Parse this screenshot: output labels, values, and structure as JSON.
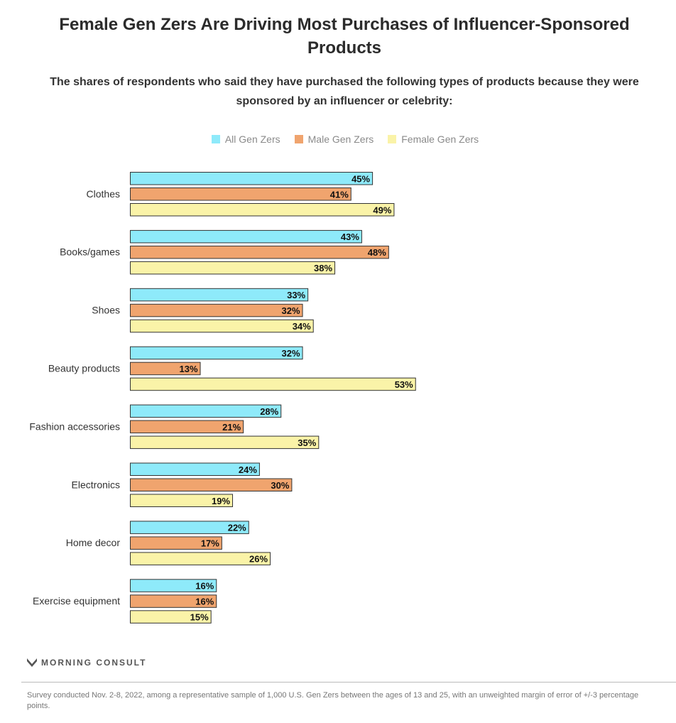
{
  "chart_data": {
    "type": "bar",
    "orientation": "horizontal",
    "title": "Female Gen Zers Are Driving Most Purchases of Influencer-Sponsored Products",
    "subtitle": "The shares of respondents who said they have purchased the following types of products because they were sponsored by an influencer or celebrity:",
    "categories": [
      "Clothes",
      "Books/games",
      "Shoes",
      "Beauty products",
      "Fashion accessories",
      "Electronics",
      "Home decor",
      "Exercise equipment"
    ],
    "series": [
      {
        "name": "All Gen Zers",
        "color": "#8eeafa",
        "values": [
          45,
          43,
          33,
          32,
          28,
          24,
          22,
          16
        ]
      },
      {
        "name": "Male Gen Zers",
        "color": "#f0a46e",
        "values": [
          41,
          48,
          32,
          13,
          21,
          30,
          17,
          16
        ]
      },
      {
        "name": "Female Gen Zers",
        "color": "#faf3a8",
        "values": [
          49,
          38,
          34,
          53,
          35,
          19,
          26,
          15
        ]
      }
    ],
    "value_suffix": "%",
    "legend_position": "top",
    "grid": false
  },
  "branding": {
    "logo": "MORNING CONSULT"
  },
  "footnote": "Survey conducted Nov. 2-8, 2022, among a representative sample of 1,000 U.S. Gen Zers between the ages of 13 and 25, with an unweighted margin of error of +/-3 percentage points."
}
